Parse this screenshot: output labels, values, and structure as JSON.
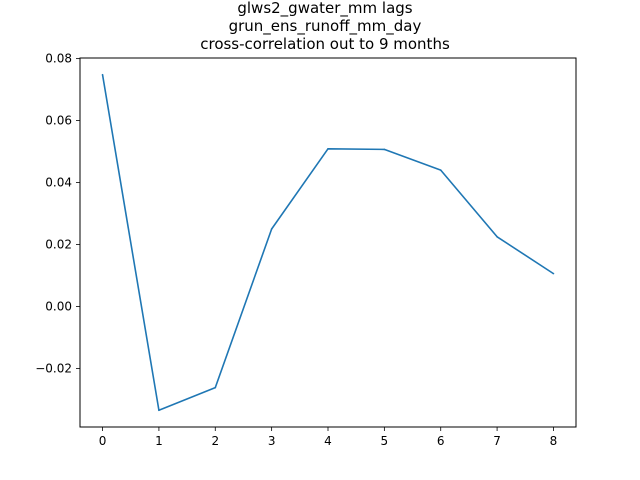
{
  "chart_data": {
    "type": "line",
    "title_lines": [
      "glws2_gwater_mm lags",
      "grun_ens_runoff_mm_day",
      "cross-correlation out to 9 months"
    ],
    "xlabel": "",
    "ylabel": "",
    "x": [
      0,
      1,
      2,
      3,
      4,
      5,
      6,
      7,
      8
    ],
    "series": [
      {
        "values": [
          0.0748,
          -0.0335,
          -0.0262,
          0.025,
          0.0509,
          0.0507,
          0.044,
          0.0225,
          0.0106
        ],
        "color": "#1f77b4"
      }
    ],
    "xlim": [
      -0.4,
      8.4
    ],
    "ylim": [
      -0.0389,
      0.0802
    ],
    "x_ticks": [
      0,
      1,
      2,
      3,
      4,
      5,
      6,
      7,
      8
    ],
    "x_tick_labels": [
      "0",
      "1",
      "2",
      "3",
      "4",
      "5",
      "6",
      "7",
      "8"
    ],
    "y_ticks": [
      -0.02,
      0.0,
      0.02,
      0.04,
      0.06,
      0.08
    ],
    "y_tick_labels": [
      "−0.02",
      "0.00",
      "0.02",
      "0.04",
      "0.06",
      "0.08"
    ],
    "grid": false,
    "legend": "none"
  }
}
